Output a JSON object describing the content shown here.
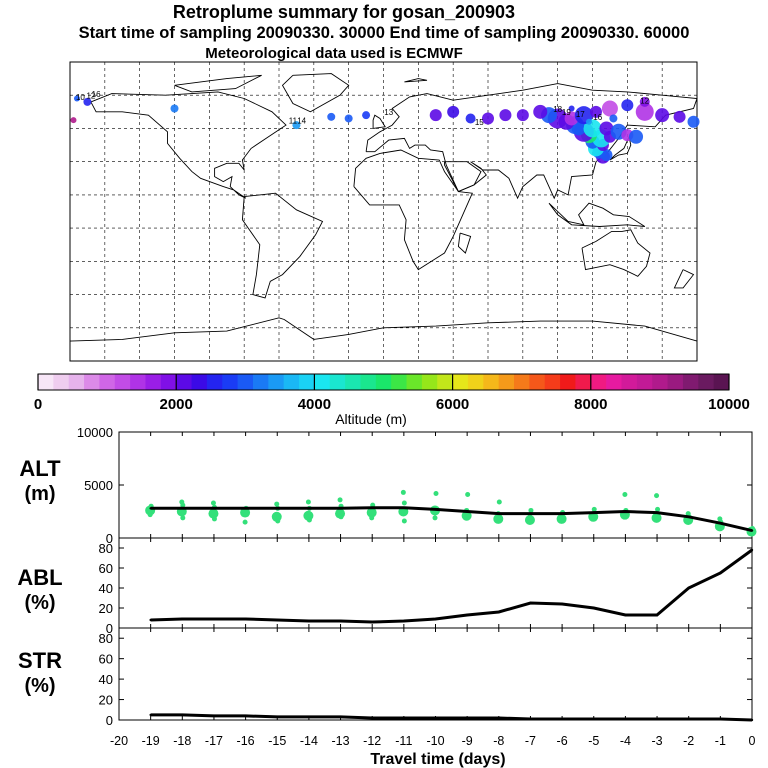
{
  "title": "Retroplume summary for gosan_200903",
  "subtitle": "Start time of sampling 20090330. 30000     End time of sampling 20090330. 60000",
  "met_note": "Meteorological data used is ECMWF",
  "colorbar": {
    "label": "Altitude (m)",
    "ticks": [
      "0",
      "2000",
      "4000",
      "6000",
      "8000",
      "10000"
    ],
    "colors": [
      "#f7e6f7",
      "#efcdef",
      "#e6b3ec",
      "#dc8ae8",
      "#d066e6",
      "#c24ce6",
      "#b033e6",
      "#9a1ee6",
      "#8010e6",
      "#5c0ae6",
      "#3b0ae6",
      "#2424f0",
      "#1a3cf5",
      "#1a5af5",
      "#1a7af5",
      "#1a9af5",
      "#1ab8f5",
      "#1ad2f5",
      "#1ae6f0",
      "#1ae6d0",
      "#1ae6b0",
      "#1ae68e",
      "#1ae66a",
      "#3ce646",
      "#6ae62a",
      "#96e61a",
      "#c2e61a",
      "#e6e61a",
      "#f0d21a",
      "#f5b81a",
      "#f59a1a",
      "#f57a1a",
      "#f5581a",
      "#f53c1a",
      "#f01a1a",
      "#f01a4c",
      "#f01a82",
      "#e61aa0",
      "#d21a9a",
      "#c21a96",
      "#b01a8c",
      "#9a1a80",
      "#801a70",
      "#6a1a60",
      "#5a1452"
    ]
  },
  "map_labels": [
    "16",
    "12",
    "10",
    "11",
    "13",
    "14",
    "15",
    "18",
    "19",
    "17"
  ],
  "chart_data": [
    {
      "type": "line",
      "name": "ALT",
      "ylabel": "ALT\n(m)",
      "ylim": [
        0,
        10000
      ],
      "yticks": [
        "0",
        "5000",
        "10000"
      ],
      "x": [
        -19.0,
        -18.0,
        -17.0,
        -16.0,
        -15.0,
        -14.0,
        -13.0,
        -12.0,
        -11.0,
        -10.0,
        -9.0,
        -8.0,
        -7.0,
        -6.0,
        -5.0,
        -4.0,
        -3.0,
        -2.0,
        -1.0,
        0.0
      ],
      "values": [
        2800,
        2800,
        2800,
        2800,
        2800,
        2800,
        2800,
        2850,
        2850,
        2700,
        2500,
        2300,
        2300,
        2300,
        2400,
        2500,
        2400,
        2000,
        1400,
        700
      ],
      "scatter_y": [
        [
          2600,
          3000,
          2200
        ],
        [
          2500,
          3100,
          3400,
          1900
        ],
        [
          2300,
          2900,
          3300,
          1800
        ],
        [
          2400,
          2800,
          1500
        ],
        [
          2000,
          2800,
          3200,
          1600
        ],
        [
          2100,
          2800,
          3400,
          1700
        ],
        [
          2300,
          3000,
          3600,
          2000
        ],
        [
          2400,
          3100,
          1900
        ],
        [
          2500,
          3300,
          4300,
          1600
        ],
        [
          2600,
          4200,
          1900
        ],
        [
          2100,
          4100,
          2600
        ],
        [
          1800,
          3400,
          2300
        ],
        [
          1700,
          2600,
          2000
        ],
        [
          1800,
          2400,
          2100
        ],
        [
          2000,
          2700,
          2300
        ],
        [
          2200,
          2600,
          4100
        ],
        [
          1900,
          2700,
          4000
        ],
        [
          1700,
          2000,
          2300
        ],
        [
          1100,
          1500,
          1800
        ],
        [
          600,
          900
        ]
      ]
    },
    {
      "type": "line",
      "name": "ABL",
      "ylabel": "ABL\n(%)",
      "ylim": [
        0,
        90
      ],
      "yticks": [
        "0",
        "20",
        "40",
        "60",
        "80"
      ],
      "x": [
        -19.0,
        -18.0,
        -17.0,
        -16.0,
        -15.0,
        -14.0,
        -13.0,
        -12.0,
        -11.0,
        -10.0,
        -9.0,
        -8.0,
        -7.0,
        -6.0,
        -5.0,
        -4.0,
        -3.0,
        -2.0,
        -1.0,
        0.0
      ],
      "values": [
        8,
        9,
        9,
        9,
        8,
        7,
        7,
        6,
        7,
        9,
        13,
        16,
        25,
        24,
        20,
        13,
        13,
        40,
        55,
        78
      ]
    },
    {
      "type": "line",
      "name": "STR",
      "ylabel": "STR\n(%)",
      "ylim": [
        0,
        90
      ],
      "yticks": [
        "0",
        "20",
        "40",
        "60",
        "80"
      ],
      "x": [
        -19.0,
        -18.0,
        -17.0,
        -16.0,
        -15.0,
        -14.0,
        -13.0,
        -12.0,
        -11.0,
        -10.0,
        -9.0,
        -8.0,
        -7.0,
        -6.0,
        -5.0,
        -4.0,
        -3.0,
        -2.0,
        -1.0,
        0.0
      ],
      "values": [
        5,
        5,
        4,
        4,
        3,
        3,
        3,
        2,
        2,
        2,
        2,
        2,
        1,
        1,
        1,
        1,
        1,
        1,
        1,
        0
      ]
    }
  ],
  "xaxis": {
    "label": "Travel time (days)",
    "ticks": [
      "-20",
      "-19",
      "-18",
      "-17",
      "-16",
      "-15",
      "-14",
      "-13",
      "-12",
      "-11",
      "-10",
      "-9",
      "-8",
      "-7",
      "-6",
      "-5",
      "-4",
      "-3",
      "-2",
      "-1",
      "0"
    ]
  }
}
